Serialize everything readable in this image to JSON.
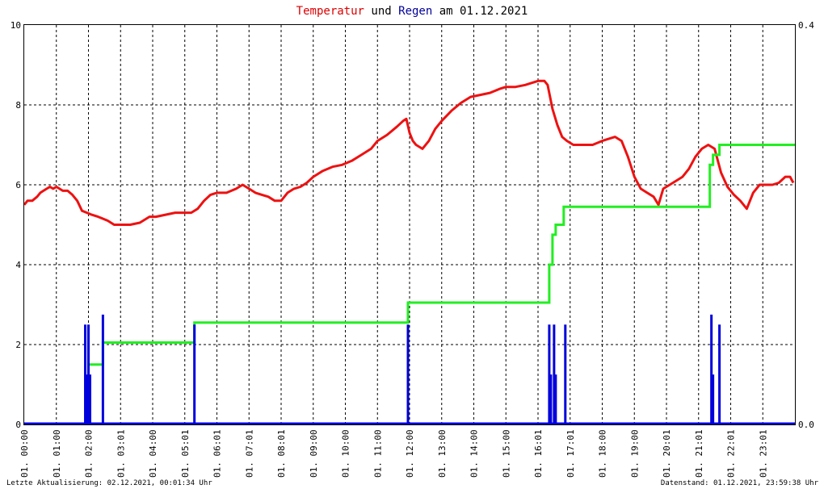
{
  "title_parts": {
    "temp": "Temperatur",
    "und": "und",
    "rain": "Regen",
    "am": "am",
    "date": "01.12.2021"
  },
  "footer": {
    "left": "Letzte Aktualisierung: 02.12.2021, 00:01:34 Uhr",
    "right": "Datenstand: 01.12.2021, 23:59:38 Uhr"
  },
  "colors": {
    "temperature": "#ee1111",
    "rain": "#0000dd",
    "rain_cumulative": "#22ee22",
    "title_temp": "#dd0000",
    "title_rain": "#000099",
    "grid": "#000000"
  },
  "chart_data": {
    "type": "line",
    "title": "Temperatur und Regen am 01.12.2021",
    "xlim": [
      0,
      24
    ],
    "ylim_left": [
      0,
      10
    ],
    "ylim_right": [
      0,
      0.4
    ],
    "yticks_left": [
      "0",
      "2",
      "4",
      "6",
      "8",
      "10"
    ],
    "yticks_right": [
      "0.0",
      "0.4"
    ],
    "xticks": [
      "01. 00:00",
      "01. 01:00",
      "01. 02:00",
      "01. 03:01",
      "01. 04:00",
      "01. 05:01",
      "01. 06:01",
      "01. 07:01",
      "01. 08:01",
      "01. 09:00",
      "01. 10:00",
      "01. 11:00",
      "01. 12:00",
      "01. 13:00",
      "01. 14:00",
      "01. 15:00",
      "01. 16:01",
      "01. 17:01",
      "01. 18:00",
      "01. 19:00",
      "01. 20:01",
      "01. 21:01",
      "01. 22:01",
      "01. 23:01"
    ],
    "grid": true,
    "series": [
      {
        "key": "temperature",
        "axis": "left",
        "style": "line",
        "x": [
          0.0,
          0.1,
          0.25,
          0.4,
          0.5,
          0.6,
          0.7,
          0.8,
          0.9,
          1.0,
          1.1,
          1.2,
          1.35,
          1.5,
          1.65,
          1.8,
          1.95,
          2.1,
          2.3,
          2.6,
          2.8,
          3.0,
          3.3,
          3.6,
          3.9,
          4.1,
          4.4,
          4.7,
          5.0,
          5.2,
          5.4,
          5.6,
          5.8,
          6.0,
          6.3,
          6.6,
          6.8,
          7.0,
          7.2,
          7.4,
          7.6,
          7.8,
          8.0,
          8.2,
          8.4,
          8.6,
          8.8,
          9.0,
          9.3,
          9.6,
          9.9,
          10.2,
          10.5,
          10.8,
          11.0,
          11.3,
          11.6,
          11.8,
          11.9,
          12.0,
          12.1,
          12.2,
          12.4,
          12.6,
          12.8,
          13.0,
          13.3,
          13.6,
          13.9,
          14.2,
          14.5,
          14.8,
          15.0,
          15.3,
          15.6,
          15.8,
          16.0,
          16.2,
          16.3,
          16.45,
          16.6,
          16.75,
          16.9,
          17.1,
          17.4,
          17.7,
          18.0,
          18.2,
          18.4,
          18.6,
          18.8,
          19.0,
          19.2,
          19.4,
          19.6,
          19.75,
          19.9,
          20.1,
          20.3,
          20.5,
          20.7,
          20.9,
          21.1,
          21.3,
          21.5,
          21.7,
          21.9,
          22.1,
          22.3,
          22.5,
          22.7,
          22.9,
          23.1,
          23.3,
          23.5,
          23.7,
          23.85,
          23.95
        ],
        "y": [
          5.5,
          5.6,
          5.6,
          5.7,
          5.8,
          5.85,
          5.9,
          5.95,
          5.9,
          5.95,
          5.9,
          5.85,
          5.85,
          5.75,
          5.6,
          5.35,
          5.3,
          5.25,
          5.2,
          5.1,
          5.0,
          5.0,
          5.0,
          5.05,
          5.2,
          5.2,
          5.25,
          5.3,
          5.3,
          5.3,
          5.4,
          5.6,
          5.75,
          5.8,
          5.8,
          5.9,
          6.0,
          5.9,
          5.8,
          5.75,
          5.7,
          5.6,
          5.6,
          5.8,
          5.9,
          5.95,
          6.05,
          6.2,
          6.35,
          6.45,
          6.5,
          6.6,
          6.75,
          6.9,
          7.1,
          7.25,
          7.45,
          7.6,
          7.65,
          7.3,
          7.1,
          7.0,
          6.9,
          7.1,
          7.4,
          7.6,
          7.85,
          8.05,
          8.2,
          8.25,
          8.3,
          8.4,
          8.45,
          8.45,
          8.5,
          8.55,
          8.6,
          8.6,
          8.5,
          7.9,
          7.5,
          7.2,
          7.1,
          7.0,
          7.0,
          7.0,
          7.1,
          7.15,
          7.2,
          7.1,
          6.7,
          6.2,
          5.9,
          5.8,
          5.7,
          5.5,
          5.9,
          6.0,
          6.1,
          6.2,
          6.4,
          6.7,
          6.9,
          7.0,
          6.9,
          6.3,
          5.95,
          5.75,
          5.6,
          5.4,
          5.8,
          6.0,
          6.0,
          6.0,
          6.05,
          6.2,
          6.2,
          6.05
        ]
      },
      {
        "key": "rain_cumulative",
        "axis": "right",
        "style": "step",
        "x": [
          2.0,
          2.45,
          5.3,
          11.95,
          16.35,
          16.45,
          16.55,
          16.8,
          21.35,
          21.45,
          21.65,
          24.0
        ],
        "y": [
          0.06,
          0.082,
          0.102,
          0.122,
          0.16,
          0.19,
          0.2,
          0.218,
          0.26,
          0.27,
          0.28,
          0.28
        ]
      },
      {
        "key": "rain",
        "axis": "right",
        "style": "impulse",
        "x": [
          1.9,
          1.95,
          2.0,
          2.05,
          2.45,
          5.3,
          11.95,
          16.35,
          16.4,
          16.5,
          16.55,
          16.85,
          21.4,
          21.45,
          21.65
        ],
        "y": [
          0.1,
          0.05,
          0.1,
          0.05,
          0.11,
          0.1,
          0.1,
          0.1,
          0.05,
          0.1,
          0.05,
          0.1,
          0.11,
          0.05,
          0.1
        ]
      }
    ]
  }
}
